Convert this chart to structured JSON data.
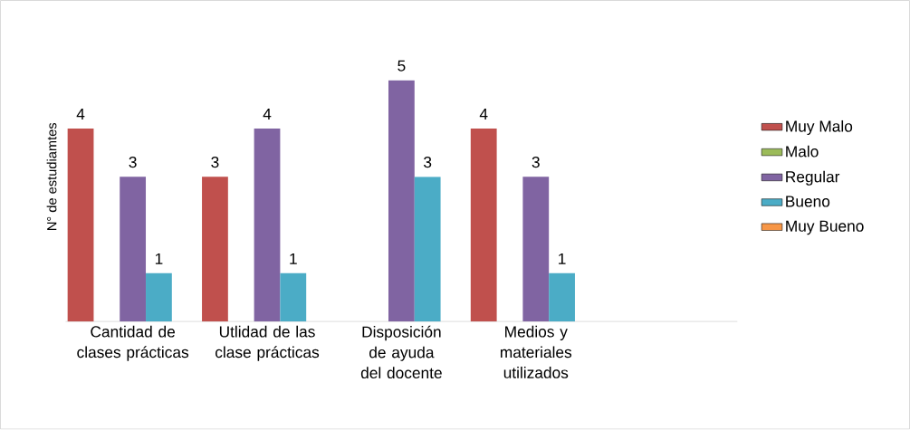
{
  "chart_data": {
    "type": "bar",
    "ylabel": "N° de estudiamtes",
    "categories": [
      "Cantidad de clases prácticas",
      "Utlidad de las clase prácticas",
      "Disposición de ayuda del docente",
      "Medios y materiales utilizados",
      null
    ],
    "series": [
      {
        "name": "Muy Malo",
        "color": "#c0504d",
        "values": [
          4,
          3,
          null,
          4,
          null
        ]
      },
      {
        "name": "Malo",
        "color": "#9bbb59",
        "values": [
          null,
          null,
          null,
          null,
          null
        ]
      },
      {
        "name": "Regular",
        "color": "#8064a2",
        "values": [
          3,
          4,
          5,
          3,
          null
        ]
      },
      {
        "name": "Bueno",
        "color": "#4bacc6",
        "values": [
          1,
          1,
          3,
          1,
          null
        ]
      },
      {
        "name": "Muy Bueno",
        "color": "#f79646",
        "values": [
          null,
          null,
          null,
          null,
          null
        ]
      }
    ],
    "data_labels": true,
    "legend": "right",
    "tick_labels": "x",
    "grid": false
  }
}
